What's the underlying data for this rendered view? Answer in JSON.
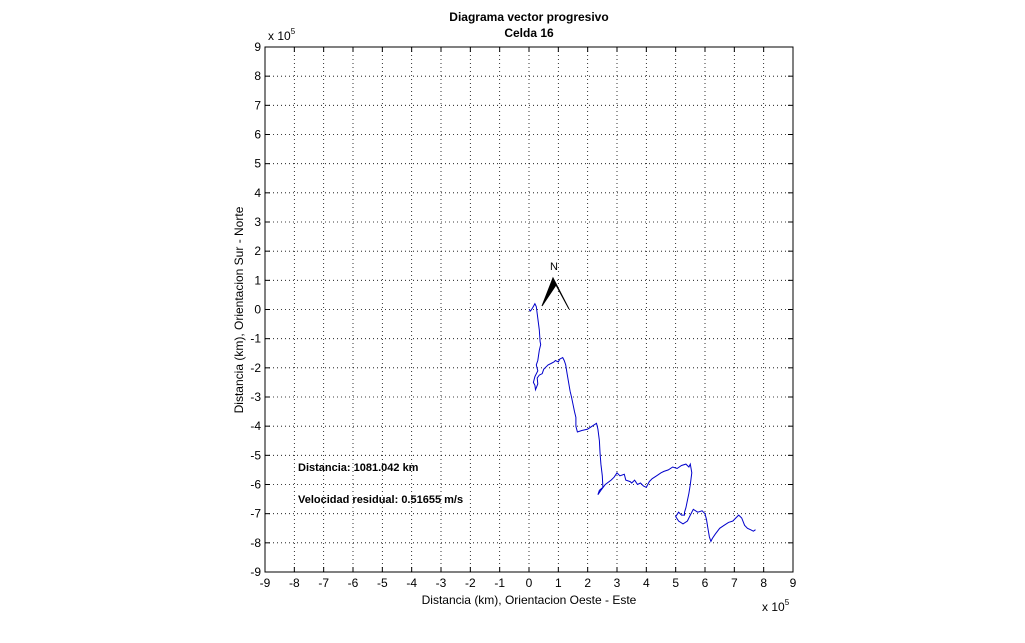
{
  "chart_data": {
    "type": "line",
    "title": "Diagrama vector progresivo",
    "subtitle": "Celda 16",
    "xlabel": "Distancia (km), Orientacion Oeste - Este",
    "ylabel": "Distancia (km), Orientacion Sur - Norte",
    "xlim": [
      -9,
      9
    ],
    "ylim": [
      -9,
      9
    ],
    "x_ticks": [
      "-9",
      "-8",
      "-7",
      "-6",
      "-5",
      "-4",
      "-3",
      "-2",
      "-1",
      "0",
      "1",
      "2",
      "3",
      "4",
      "5",
      "6",
      "7",
      "8",
      "9"
    ],
    "y_ticks": [
      "9",
      "8",
      "7",
      "6",
      "5",
      "4",
      "3",
      "2",
      "1",
      "0",
      "-1",
      "-2",
      "-3",
      "-4",
      "-5",
      "-6",
      "-7",
      "-8",
      "-9"
    ],
    "x_multiplier_base": "x 10",
    "x_multiplier_exp": "5",
    "y_multiplier_base": "x 10",
    "y_multiplier_exp": "5",
    "grid": true,
    "annotations": {
      "distance": "Distancia: 1081.042 km",
      "velocity": "Velocidad residual: 0.51655 m/s",
      "north": "N"
    },
    "series": [
      {
        "color": "#0000cc",
        "x": [
          0,
          0.05,
          0.12,
          0.2,
          0.25,
          0.3,
          0.35,
          0.38,
          0.4,
          0.35,
          0.3,
          0.25,
          0.3,
          0.2,
          0.15,
          0.2,
          0.22,
          0.3,
          0.28,
          0.35,
          0.45,
          0.5,
          0.55,
          0.65,
          0.75,
          0.85,
          0.9,
          1.0,
          1.05,
          1.15,
          1.2,
          1.25,
          1.3,
          1.35,
          1.4,
          1.45,
          1.5,
          1.55,
          1.6,
          1.6,
          1.65,
          1.8,
          2.0,
          2.15,
          2.3,
          2.35,
          2.4,
          2.42,
          2.45,
          2.5,
          2.52,
          2.4,
          2.35,
          2.45,
          2.6,
          2.8,
          2.9,
          3.0,
          3.1,
          3.25,
          3.3,
          3.45,
          3.5,
          3.6,
          3.7,
          3.8,
          3.9,
          4.0,
          4.1,
          4.2,
          4.35,
          4.5,
          4.6,
          4.75,
          4.9,
          5.05,
          5.2,
          5.35,
          5.45,
          5.5,
          5.55,
          5.5,
          5.45,
          5.4,
          5.35,
          5.3,
          5.3,
          5.2,
          5.1,
          5.0,
          5.1,
          5.25,
          5.4,
          5.5,
          5.6,
          5.75,
          5.9,
          6.0,
          6.05,
          6.1,
          6.15,
          6.2,
          6.25,
          6.35,
          6.5,
          6.65,
          6.8,
          6.95,
          7.05,
          7.15,
          7.25,
          7.35,
          7.45,
          7.55,
          7.65,
          7.72
        ],
        "y": [
          0,
          -0.05,
          0.05,
          0.2,
          0.1,
          -0.3,
          -0.7,
          -1.1,
          -1.2,
          -1.4,
          -1.75,
          -1.9,
          -2.1,
          -2.3,
          -2.5,
          -2.6,
          -2.75,
          -2.55,
          -2.35,
          -2.25,
          -2.2,
          -2.05,
          -2.0,
          -1.9,
          -1.85,
          -1.8,
          -1.75,
          -1.8,
          -1.7,
          -1.65,
          -1.75,
          -1.9,
          -2.2,
          -2.5,
          -2.8,
          -3.0,
          -3.25,
          -3.5,
          -3.7,
          -4.0,
          -4.2,
          -4.15,
          -4.1,
          -4.0,
          -3.9,
          -4.1,
          -4.5,
          -4.9,
          -5.3,
          -5.7,
          -6.1,
          -6.2,
          -6.35,
          -6.2,
          -6.0,
          -5.85,
          -5.75,
          -5.6,
          -5.7,
          -5.65,
          -5.85,
          -5.9,
          -5.95,
          -5.85,
          -6.0,
          -5.95,
          -6.05,
          -6.1,
          -5.9,
          -5.8,
          -5.7,
          -5.6,
          -5.55,
          -5.5,
          -5.4,
          -5.45,
          -5.35,
          -5.3,
          -5.4,
          -5.3,
          -5.6,
          -6.0,
          -6.3,
          -6.55,
          -6.8,
          -6.95,
          -7.05,
          -7.05,
          -6.95,
          -7.1,
          -7.25,
          -7.35,
          -7.25,
          -7.05,
          -6.85,
          -6.95,
          -6.9,
          -7.0,
          -7.2,
          -7.5,
          -7.8,
          -7.95,
          -7.85,
          -7.7,
          -7.5,
          -7.4,
          -7.3,
          -7.25,
          -7.15,
          -7.05,
          -7.15,
          -7.4,
          -7.5,
          -7.55,
          -7.6,
          -7.55
        ]
      }
    ]
  }
}
